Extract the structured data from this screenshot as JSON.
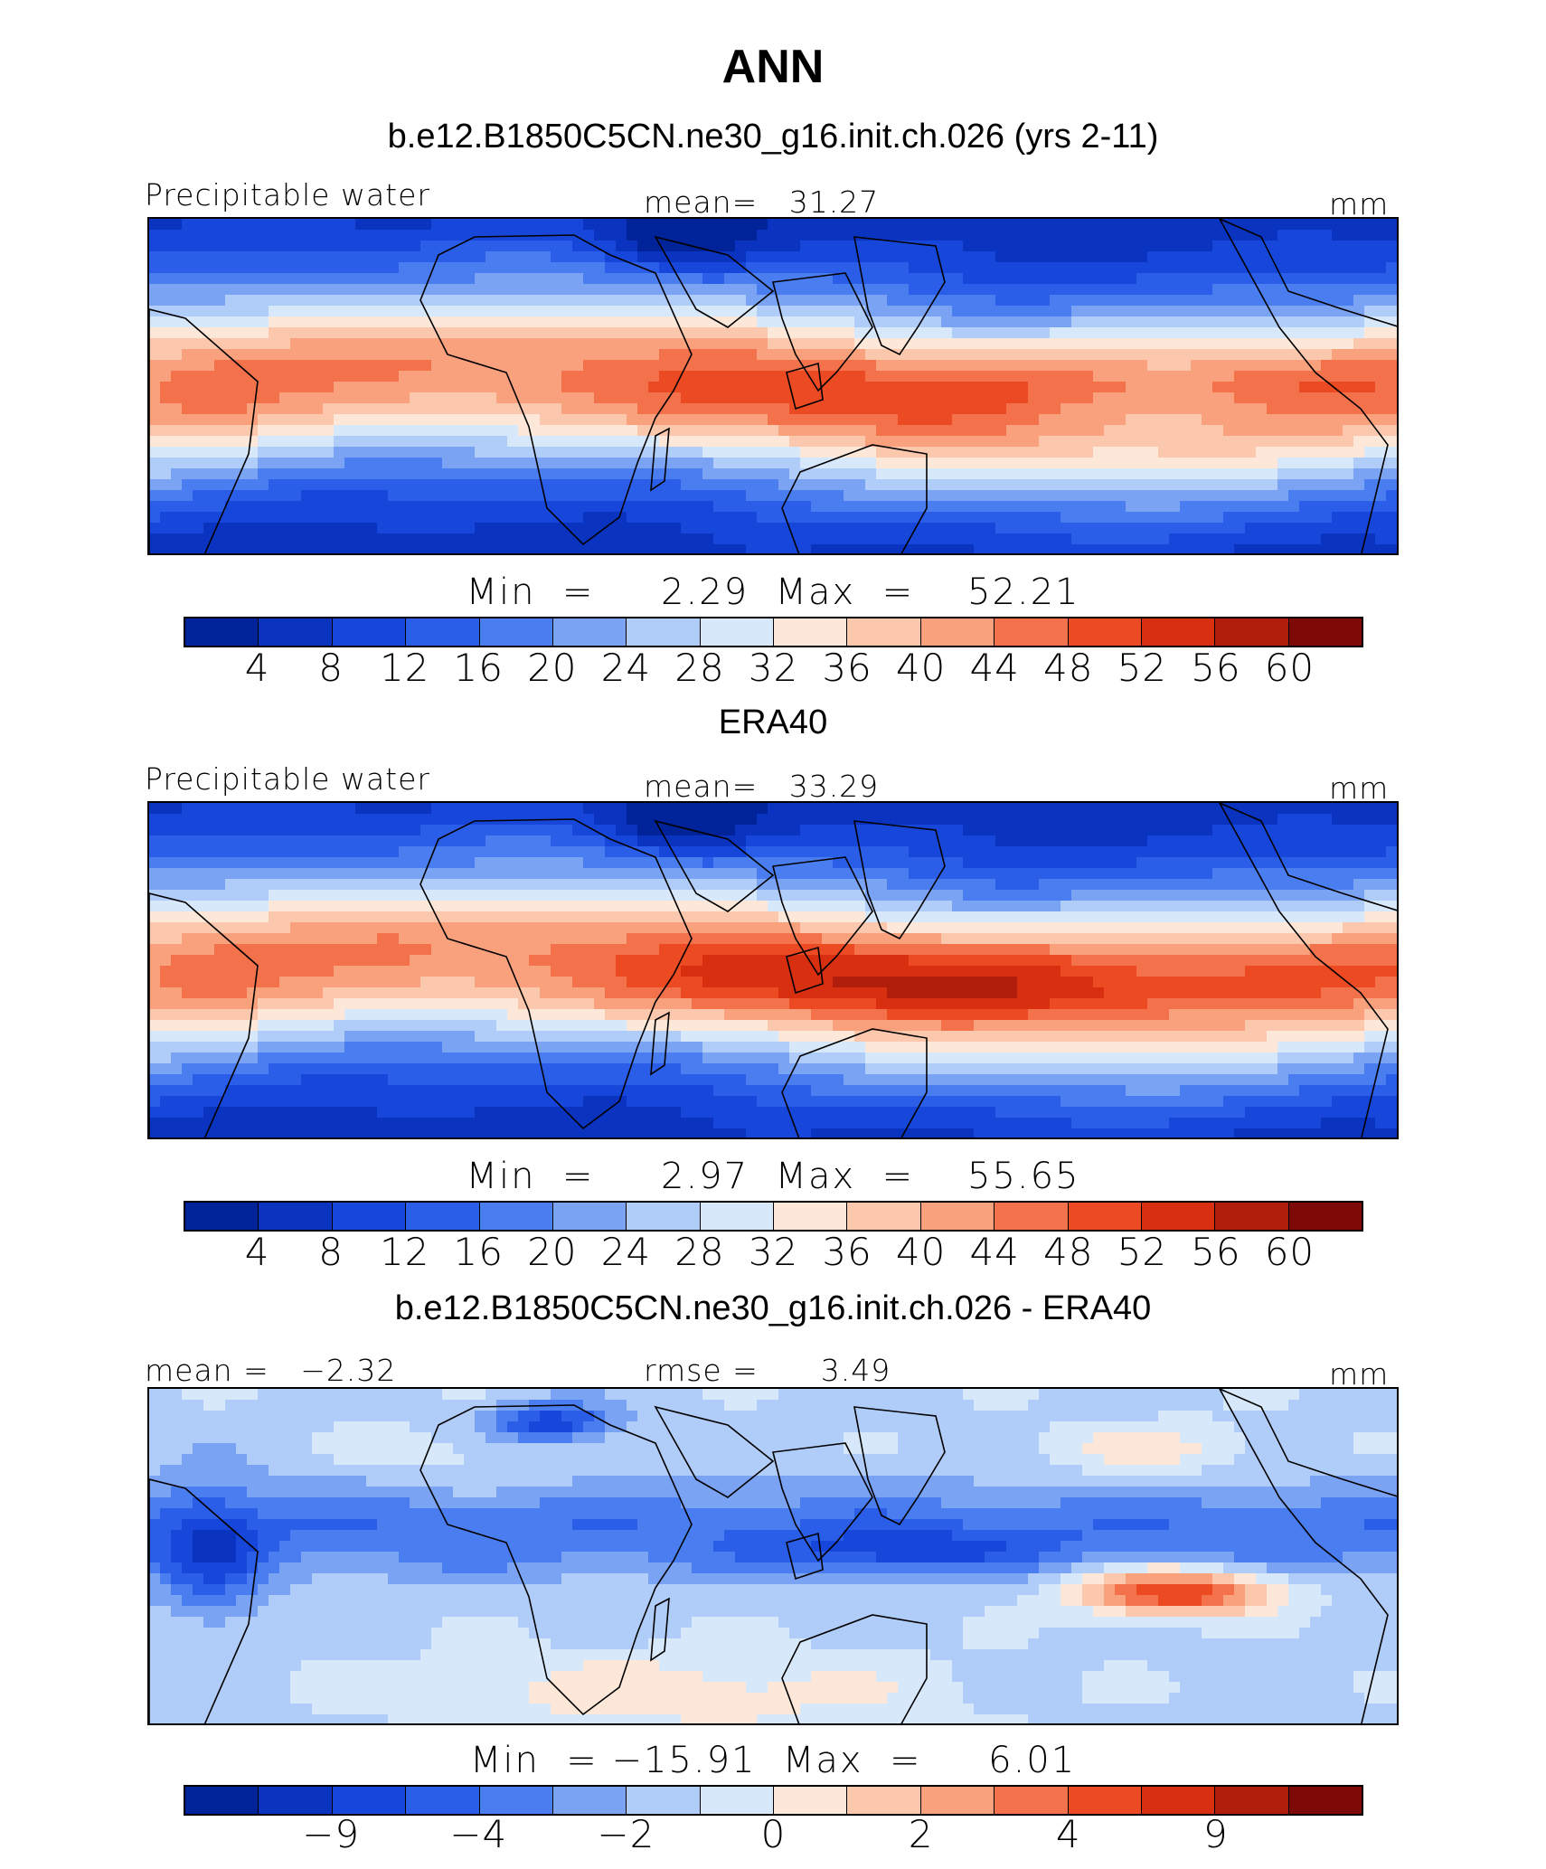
{
  "title": "ANN",
  "colors": {
    "absolute_scale": [
      "#00239a",
      "#0a33c0",
      "#1747da",
      "#2b5ee8",
      "#4a7ef0",
      "#7aa3f4",
      "#b0ccf8",
      "#d8e8fb",
      "#fde7d8",
      "#fcc8ad",
      "#f9a07c",
      "#f4724b",
      "#ec4a22",
      "#d72f10",
      "#b01e0b",
      "#7d0a06"
    ],
    "diff_scale": [
      "#00239a",
      "#0a33c0",
      "#1747da",
      "#2b5ee8",
      "#4a7ef0",
      "#7aa3f4",
      "#b0ccf8",
      "#d8e8fb",
      "#fde7d8",
      "#fcc8ad",
      "#f9a07c",
      "#f4724b",
      "#ec4a22",
      "#d72f10",
      "#b01e0b",
      "#7d0a06"
    ],
    "coast": "#000000"
  },
  "chart_data": [
    {
      "type": "heatmap",
      "title": "b.e12.B1850C5CN.ne30_g16.init.ch.026 (yrs 2-11)",
      "variable": "Precipitable water",
      "mean_label": "mean=   31.27",
      "units": "mm",
      "min": 2.29,
      "max": 52.21,
      "minmax_text": "Min  =     2.29  Max  =    52.21",
      "colorbar_ticks": [
        "4",
        "8",
        "12",
        "16",
        "20",
        "24",
        "28",
        "32",
        "36",
        "40",
        "44",
        "48",
        "52",
        "56",
        "60"
      ],
      "pattern": "model"
    },
    {
      "type": "heatmap",
      "title": "ERA40",
      "variable": "Precipitable water",
      "mean_label": "mean=   33.29",
      "units": "mm",
      "min": 2.97,
      "max": 55.65,
      "minmax_text": "Min  =     2.97  Max  =    55.65",
      "colorbar_ticks": [
        "4",
        "8",
        "12",
        "16",
        "20",
        "24",
        "28",
        "32",
        "36",
        "40",
        "44",
        "48",
        "52",
        "56",
        "60"
      ],
      "pattern": "obs"
    },
    {
      "type": "heatmap",
      "title": "b.e12.B1850C5CN.ne30_g16.init.ch.026 - ERA40",
      "mean_label": "mean =   −2.32",
      "rmse_label": "rmse =      3.49",
      "units": "mm",
      "min": -15.91,
      "max": 6.01,
      "minmax_text": "Min  = −15.91  Max  =     6.01",
      "colorbar_ticks": [
        "−9",
        "−4",
        "−2",
        "0",
        "2",
        "4",
        "9"
      ],
      "pattern": "diff"
    }
  ]
}
